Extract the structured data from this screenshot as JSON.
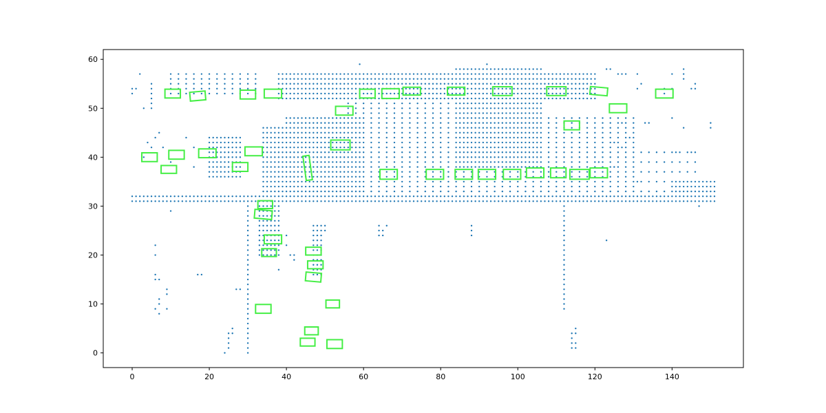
{
  "chart_data": {
    "type": "scatter",
    "title": "",
    "xlabel": "",
    "ylabel": "",
    "xlim": [
      -7.5,
      158.5
    ],
    "ylim": [
      -3,
      62
    ],
    "x_ticks": [
      0,
      20,
      40,
      60,
      80,
      100,
      120,
      140
    ],
    "y_ticks": [
      0,
      10,
      20,
      30,
      40,
      50,
      60
    ],
    "grid": false,
    "legend": "none",
    "colors": {
      "points": "#1f77b4",
      "boxes": "#44ee44",
      "axes": "#000000"
    },
    "point_regions": [
      {
        "x": [
          0,
          151
        ],
        "y": [
          31,
          31
        ],
        "dx": 1,
        "dy": 1
      },
      {
        "x": [
          0,
          151
        ],
        "y": [
          32,
          32
        ],
        "dx": 1,
        "dy": 1
      },
      {
        "x": [
          30,
          30
        ],
        "y": [
          0,
          31
        ],
        "dx": 1,
        "dy": 1
      },
      {
        "x": [
          34,
          42
        ],
        "y": [
          33,
          46
        ],
        "dx": 1,
        "dy": 1
      },
      {
        "x": [
          40,
          60
        ],
        "y": [
          33,
          48
        ],
        "dx": 1,
        "dy": 1
      },
      {
        "x": [
          60,
          130
        ],
        "y": [
          33,
          48
        ],
        "dx": 2,
        "dy": 1
      },
      {
        "x": [
          38,
          120
        ],
        "y": [
          52,
          57
        ],
        "dx": 1,
        "dy": 1
      },
      {
        "x": [
          56,
          100
        ],
        "y": [
          48,
          52
        ],
        "dx": 2,
        "dy": 1
      },
      {
        "x": [
          84,
          106
        ],
        "y": [
          38,
          58
        ],
        "dx": 1,
        "dy": 1
      },
      {
        "x": [
          112,
          112
        ],
        "y": [
          9,
          31
        ],
        "dx": 1,
        "dy": 1
      },
      {
        "x": [
          33,
          38
        ],
        "y": [
          20,
          30
        ],
        "dx": 1,
        "dy": 1
      },
      {
        "x": [
          47,
          49
        ],
        "y": [
          16,
          26
        ],
        "dx": 1,
        "dy": 1
      },
      {
        "x": [
          20,
          28
        ],
        "y": [
          36,
          44
        ],
        "dx": 1,
        "dy": 1
      },
      {
        "x": [
          130,
          146
        ],
        "y": [
          33,
          42
        ],
        "dx": 2,
        "dy": 2
      },
      {
        "x": [
          10,
          32
        ],
        "y": [
          53,
          57
        ],
        "dx": 2,
        "dy": 1
      },
      {
        "x": [
          140,
          151
        ],
        "y": [
          33,
          35
        ],
        "dx": 1,
        "dy": 1
      }
    ],
    "points": [
      [
        0,
        53
      ],
      [
        0,
        54
      ],
      [
        1,
        54
      ],
      [
        2,
        57
      ],
      [
        3,
        50
      ],
      [
        3,
        40
      ],
      [
        5,
        50
      ],
      [
        5,
        51
      ],
      [
        5,
        52
      ],
      [
        5,
        53
      ],
      [
        5,
        54
      ],
      [
        5,
        55
      ],
      [
        6,
        22
      ],
      [
        6,
        20
      ],
      [
        6,
        16
      ],
      [
        6,
        15
      ],
      [
        7,
        15
      ],
      [
        7,
        11
      ],
      [
        7,
        10
      ],
      [
        6,
        9
      ],
      [
        7,
        8
      ],
      [
        9,
        9
      ],
      [
        9,
        12
      ],
      [
        9,
        13
      ],
      [
        4,
        43
      ],
      [
        5,
        42
      ],
      [
        6,
        44
      ],
      [
        7,
        45
      ],
      [
        10,
        29
      ],
      [
        10,
        39
      ],
      [
        8,
        42
      ],
      [
        16,
        38
      ],
      [
        17,
        16
      ],
      [
        18,
        16
      ],
      [
        14,
        44
      ],
      [
        16,
        42
      ],
      [
        25,
        3
      ],
      [
        25,
        4
      ],
      [
        26,
        4
      ],
      [
        26,
        5
      ],
      [
        24,
        0
      ],
      [
        25,
        1
      ],
      [
        25,
        2
      ],
      [
        27,
        13
      ],
      [
        28,
        13
      ],
      [
        64,
        24
      ],
      [
        64,
        25
      ],
      [
        64,
        26
      ],
      [
        65,
        24
      ],
      [
        65,
        25
      ],
      [
        66,
        26
      ],
      [
        88,
        24
      ],
      [
        88,
        25
      ],
      [
        88,
        26
      ],
      [
        123,
        23
      ],
      [
        114,
        1
      ],
      [
        114,
        2
      ],
      [
        114,
        3
      ],
      [
        114,
        4
      ],
      [
        115,
        1
      ],
      [
        115,
        2
      ],
      [
        115,
        4
      ],
      [
        115,
        5
      ],
      [
        59,
        59
      ],
      [
        92,
        59
      ],
      [
        48,
        26
      ],
      [
        48,
        25
      ],
      [
        50,
        26
      ],
      [
        49,
        24
      ],
      [
        50,
        25
      ],
      [
        41,
        20
      ],
      [
        42,
        20
      ],
      [
        42,
        19
      ],
      [
        38,
        17
      ],
      [
        40,
        22
      ],
      [
        40,
        24
      ],
      [
        150,
        46
      ],
      [
        150,
        47
      ],
      [
        143,
        46
      ],
      [
        140,
        48
      ],
      [
        143,
        56
      ],
      [
        143,
        57
      ],
      [
        143,
        58
      ],
      [
        140,
        57
      ],
      [
        138,
        53
      ],
      [
        138,
        54
      ],
      [
        140,
        54
      ],
      [
        145,
        54
      ],
      [
        146,
        55
      ],
      [
        146,
        54
      ],
      [
        140,
        41
      ],
      [
        141,
        41
      ],
      [
        138,
        39
      ],
      [
        145,
        41
      ],
      [
        148,
        34
      ],
      [
        147,
        30
      ],
      [
        149,
        32
      ],
      [
        133,
        47
      ],
      [
        134,
        47
      ],
      [
        130,
        45
      ],
      [
        129,
        44
      ],
      [
        128,
        46
      ],
      [
        127,
        47
      ],
      [
        132,
        55
      ],
      [
        131,
        54
      ],
      [
        126,
        57
      ],
      [
        127,
        57
      ],
      [
        128,
        57
      ],
      [
        123,
        58
      ],
      [
        124,
        58
      ],
      [
        131,
        57
      ],
      [
        124,
        45
      ],
      [
        125,
        43
      ],
      [
        127,
        42
      ],
      [
        128,
        41
      ],
      [
        122,
        40
      ],
      [
        121,
        39
      ],
      [
        124,
        38
      ],
      [
        125,
        38
      ],
      [
        124,
        36
      ],
      [
        126,
        35
      ],
      [
        128,
        34
      ],
      [
        130,
        34
      ],
      [
        131,
        35
      ]
    ],
    "boxes": [
      [
        10.5,
        53,
        4,
        1.8,
        0
      ],
      [
        17,
        52.5,
        4,
        1.8,
        -5
      ],
      [
        30,
        52.8,
        4,
        1.8,
        0
      ],
      [
        36.5,
        53,
        4.5,
        1.8,
        0
      ],
      [
        61,
        53,
        4,
        1.8,
        0
      ],
      [
        67,
        53,
        4.5,
        2,
        0
      ],
      [
        72.5,
        53.5,
        4.5,
        1.6,
        0
      ],
      [
        84,
        53.5,
        4.5,
        1.6,
        0
      ],
      [
        96,
        53.5,
        5,
        1.8,
        0
      ],
      [
        110,
        53.5,
        5,
        1.8,
        0
      ],
      [
        121,
        53.5,
        4.5,
        1.6,
        5
      ],
      [
        138,
        53,
        4.5,
        1.8,
        0
      ],
      [
        55,
        49.5,
        4.5,
        1.8,
        0
      ],
      [
        126,
        50,
        4.5,
        1.8,
        0
      ],
      [
        114,
        46.5,
        4,
        1.8,
        0
      ],
      [
        54,
        42.5,
        5,
        2,
        0
      ],
      [
        31.5,
        41.2,
        4.5,
        1.8,
        0
      ],
      [
        19.5,
        40.8,
        4.5,
        1.8,
        0
      ],
      [
        11.5,
        40.5,
        4,
        1.8,
        0
      ],
      [
        4.5,
        40,
        4,
        1.8,
        0
      ],
      [
        9.5,
        37.5,
        4,
        1.6,
        0
      ],
      [
        28,
        38,
        4,
        1.8,
        0
      ],
      [
        45.5,
        37.8,
        1.6,
        5,
        -8
      ],
      [
        66.5,
        36.5,
        4.5,
        2,
        0
      ],
      [
        78.5,
        36.5,
        4.5,
        2,
        0
      ],
      [
        86,
        36.5,
        4.5,
        2,
        0
      ],
      [
        92,
        36.5,
        4.5,
        2,
        0
      ],
      [
        98.5,
        36.5,
        4.5,
        2,
        0
      ],
      [
        104.5,
        36.8,
        4.5,
        2,
        0
      ],
      [
        110.5,
        36.8,
        4,
        2,
        0
      ],
      [
        116,
        36.5,
        5,
        2,
        0
      ],
      [
        121,
        36.8,
        4.5,
        2,
        0
      ],
      [
        34.5,
        30.3,
        3.8,
        1.6,
        0
      ],
      [
        34,
        28.3,
        4.5,
        1.8,
        5
      ],
      [
        36.5,
        23.2,
        4.5,
        1.8,
        0
      ],
      [
        35.5,
        20.5,
        3.8,
        1.6,
        0
      ],
      [
        47,
        20.8,
        4,
        1.6,
        0
      ],
      [
        47.5,
        18,
        4,
        1.6,
        0
      ],
      [
        47,
        15.5,
        4,
        1.8,
        5
      ],
      [
        34,
        9,
        4,
        1.8,
        0
      ],
      [
        52,
        10,
        3.5,
        1.6,
        0
      ],
      [
        46.5,
        4.5,
        3.5,
        1.6,
        0
      ],
      [
        45.5,
        2.2,
        3.8,
        1.6,
        0
      ],
      [
        52.5,
        1.8,
        4,
        1.8,
        0
      ]
    ]
  }
}
